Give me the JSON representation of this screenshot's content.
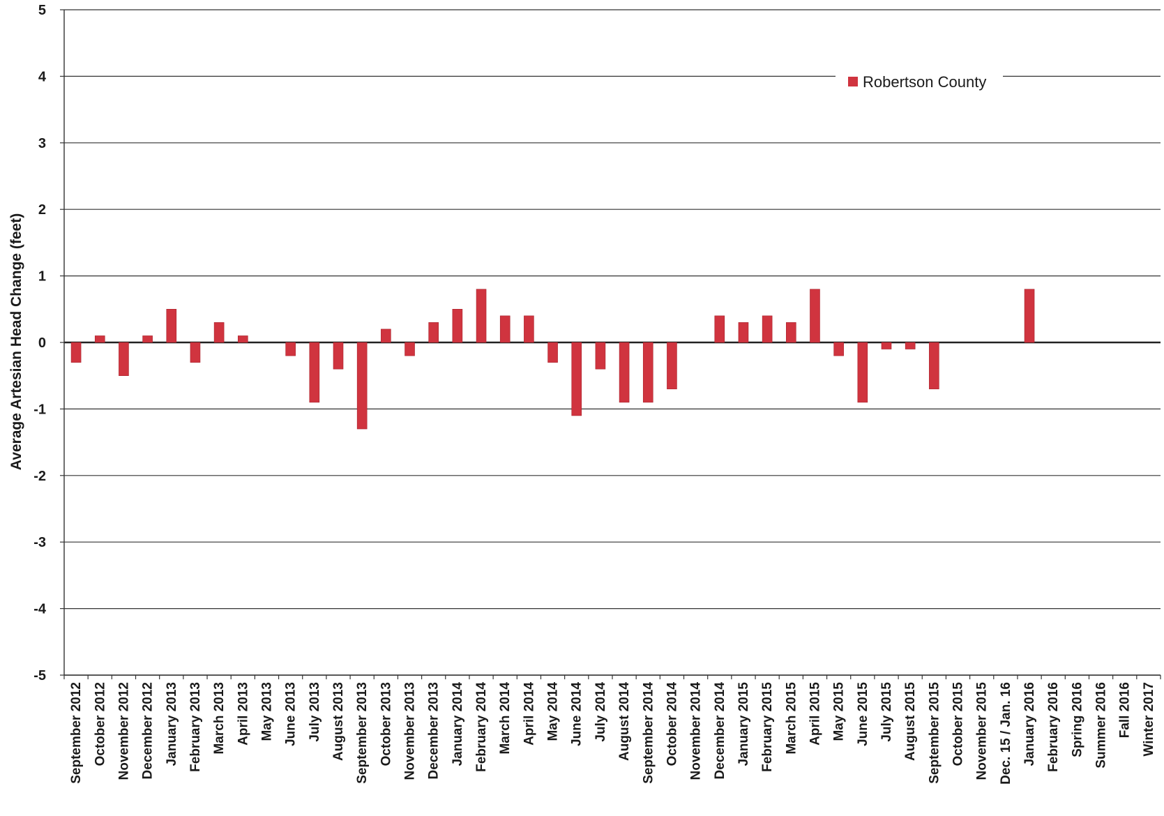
{
  "chart_data": {
    "type": "bar",
    "title": "",
    "xlabel": "",
    "ylabel": "Average Artesian Head Change (feet)",
    "ylim": [
      -5,
      5
    ],
    "yticks": [
      5,
      4,
      3,
      2,
      1,
      0,
      -1,
      -2,
      -3,
      -4,
      -5
    ],
    "grid": true,
    "legend_position": "top-right",
    "categories": [
      "September 2012",
      "October 2012",
      "November 2012",
      "December 2012",
      "January 2013",
      "February 2013",
      "March 2013",
      "April 2013",
      "May 2013",
      "June 2013",
      "July 2013",
      "August 2013",
      "September 2013",
      "October 2013",
      "November 2013",
      "December 2013",
      "January 2014",
      "February 2014",
      "March 2014",
      "April 2014",
      "May 2014",
      "June 2014",
      "July 2014",
      "August 2014",
      "September 2014",
      "October 2014",
      "November 2014",
      "December 2014",
      "January 2015",
      "February 2015",
      "March 2015",
      "April 2015",
      "May 2015",
      "June 2015",
      "July 2015",
      "August 2015",
      "September 2015",
      "October 2015",
      "November 2015",
      "Dec. 15 / Jan. 16",
      "January 2016",
      "February 2016",
      "Spring 2016",
      "Summer 2016",
      "Fall 2016",
      "Winter 2017"
    ],
    "series": [
      {
        "name": "Robertson County",
        "color": "#d0343f",
        "values": [
          -0.3,
          0.1,
          -0.5,
          0.1,
          0.5,
          -0.3,
          0.3,
          0.1,
          0,
          -0.2,
          -0.9,
          -0.4,
          -1.3,
          0.2,
          -0.2,
          0.3,
          0.5,
          0.8,
          0.4,
          0.4,
          -0.3,
          -1.1,
          -0.4,
          -0.9,
          -0.9,
          -0.7,
          0,
          0.4,
          0.3,
          0.4,
          0.3,
          0.8,
          -0.2,
          -0.9,
          -0.1,
          -0.1,
          -0.7,
          0,
          0,
          0,
          0.8,
          0,
          0,
          0,
          0,
          0
        ]
      }
    ]
  }
}
